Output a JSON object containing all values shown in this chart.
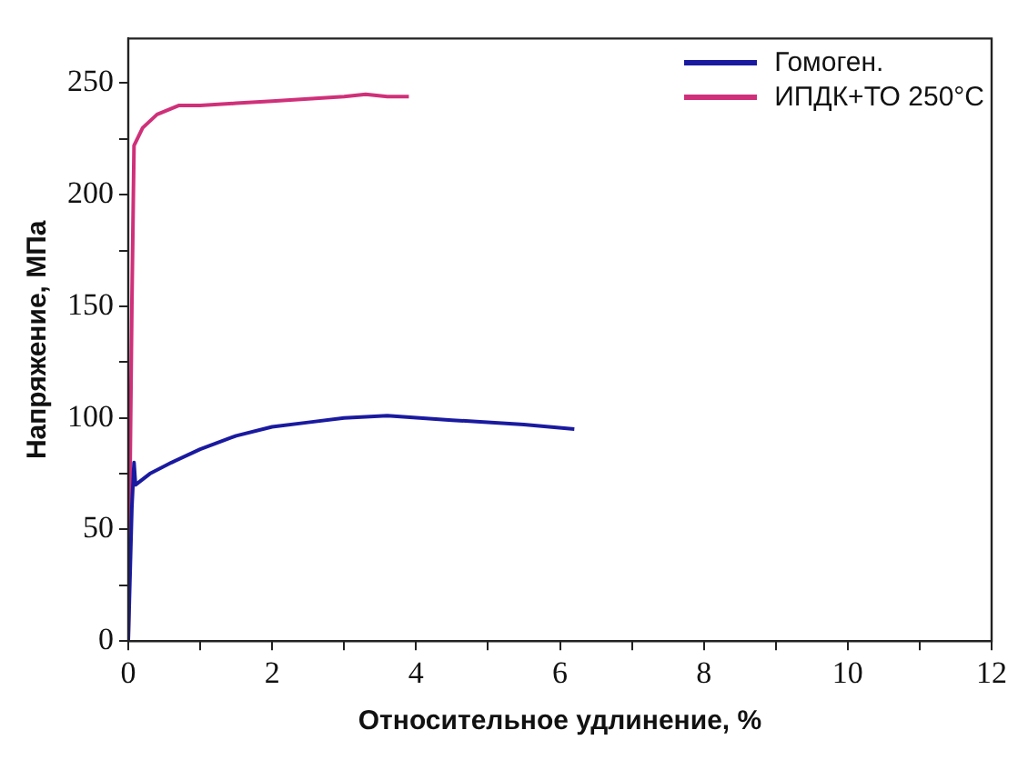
{
  "chart_data": {
    "type": "line",
    "xlabel": "Относительное удлинение, %",
    "ylabel": "Напряжение, МПа",
    "xlim": [
      0,
      12
    ],
    "xticks": [
      0,
      {
        "value": 1,
        "label": null
      },
      2,
      {
        "value": 3,
        "label": null
      },
      4,
      {
        "value": 5,
        "label": null
      },
      6,
      {
        "value": 7,
        "label": null
      },
      8,
      {
        "value": 9,
        "label": null
      },
      10,
      {
        "value": 11,
        "label": null
      },
      12
    ],
    "ylim": [
      0,
      270
    ],
    "yticks": [
      0,
      {
        "value": 25,
        "label": null
      },
      50,
      {
        "value": 75,
        "label": null
      },
      100,
      {
        "value": 125,
        "label": null
      },
      150,
      {
        "value": 175,
        "label": null
      },
      200,
      {
        "value": 225,
        "label": null
      },
      250
    ],
    "grid": false,
    "legend": "top right",
    "marker": "none",
    "line_style": "solid",
    "series": [
      {
        "name": "Гомоген.",
        "color": "#1a1aa0",
        "x": [
          0,
          0.05,
          0.08,
          0.1,
          0.3,
          0.6,
          1,
          1.5,
          2,
          2.5,
          3,
          3.6,
          4.5,
          5.5,
          6.2
        ],
        "values": [
          0,
          60,
          80,
          70,
          75,
          80,
          86,
          92,
          96,
          98,
          100,
          101,
          99,
          97,
          95
        ]
      },
      {
        "name": "ИПДК+ТО 250°C",
        "color": "#d0307a",
        "x": [
          0,
          0.05,
          0.08,
          0.2,
          0.4,
          0.7,
          1,
          1.5,
          2,
          2.5,
          3,
          3.3,
          3.6,
          3.9
        ],
        "values": [
          0,
          150,
          222,
          230,
          236,
          240,
          240,
          241,
          242,
          243,
          244,
          245,
          244,
          244
        ]
      }
    ]
  }
}
